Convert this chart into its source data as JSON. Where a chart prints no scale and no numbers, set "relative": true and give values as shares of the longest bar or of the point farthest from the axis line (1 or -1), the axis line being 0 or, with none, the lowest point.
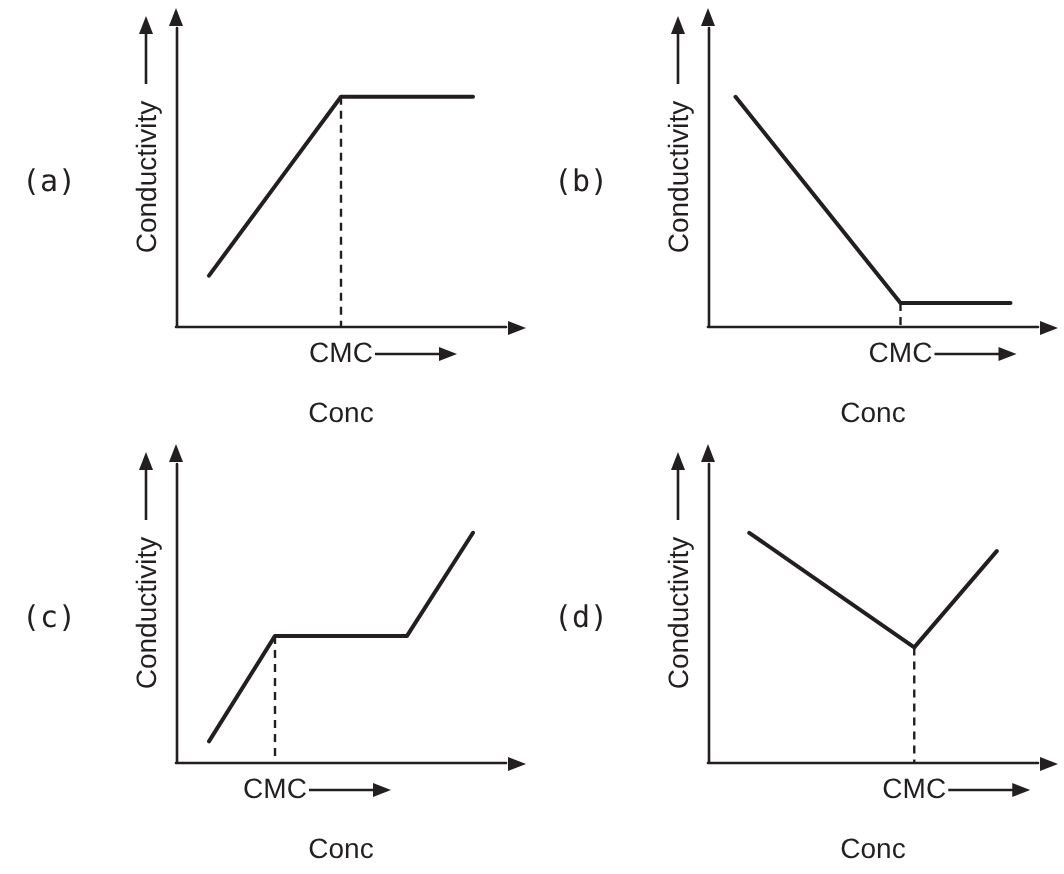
{
  "chart_data": [
    {
      "type": "line",
      "title": "(a)",
      "ylabel": "Conductivity",
      "xlabel": "Conc",
      "categories": [
        null,
        null,
        null,
        null,
        null
      ],
      "values": [
        0.22,
        0.61,
        1,
        1,
        1
      ],
      "color": "#231f20",
      "relative": true,
      "marker": "none",
      "annotations": [
        "CMC"
      ]
    },
    {
      "type": "line",
      "title": "(b)",
      "ylabel": "Conductivity",
      "xlabel": "Conc",
      "categories": [
        null,
        null,
        null,
        null,
        null,
        null
      ],
      "values": [
        1,
        0.7,
        0.4,
        0.1,
        0.1,
        0.1
      ],
      "color": "#231f20",
      "relative": true,
      "marker": "none",
      "annotations": [
        "CMC"
      ]
    },
    {
      "type": "line",
      "title": "(c)",
      "ylabel": "Conductivity",
      "xlabel": "Conc",
      "categories": [
        null,
        null,
        null,
        null,
        null
      ],
      "values": [
        0.09,
        0.55,
        0.55,
        0.55,
        1
      ],
      "color": "#231f20",
      "relative": true,
      "marker": "none",
      "annotations": [
        "CMC"
      ]
    },
    {
      "type": "line",
      "title": "(d)",
      "ylabel": "Conductivity",
      "xlabel": "Conc",
      "categories": [
        null,
        null,
        null,
        null
      ],
      "values": [
        1,
        0.75,
        0.5,
        0.92
      ],
      "color": "#231f20",
      "relative": true,
      "marker": "none",
      "annotations": [
        "CMC"
      ]
    }
  ]
}
